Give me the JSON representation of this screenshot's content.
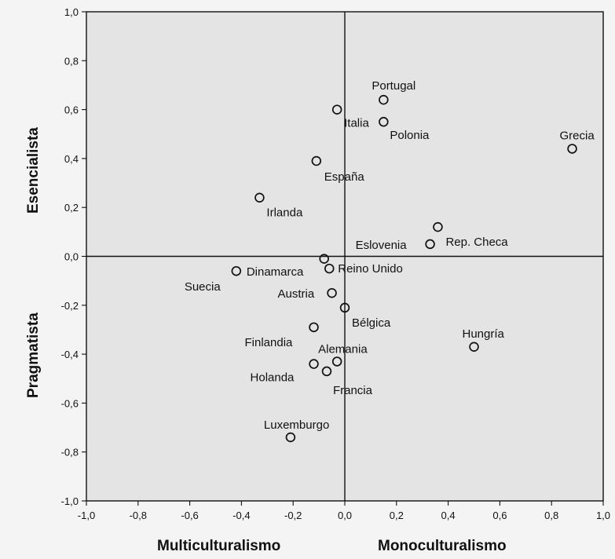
{
  "chart_data": {
    "type": "scatter",
    "xlim": [
      -1.0,
      1.0
    ],
    "ylim": [
      -1.0,
      1.0
    ],
    "grid": false,
    "reference_lines": {
      "x": 0.0,
      "y": 0.0
    },
    "x_ticks": [
      "-1,0",
      "-0,8",
      "-0,6",
      "-0,4",
      "-0,2",
      "0,0",
      "0,2",
      "0,4",
      "0,6",
      "0,8",
      "1,0"
    ],
    "y_ticks": [
      "1,0",
      "0,8",
      "0,6",
      "0,4",
      "0,2",
      "0,0",
      "-0,2",
      "-0,4",
      "-0,6",
      "-0,8",
      "-1,0"
    ],
    "x_labels": {
      "left": "Multiculturalismo",
      "right": "Monoculturalismo"
    },
    "y_labels": {
      "top": "Esencialista",
      "bottom": "Pragmatista"
    },
    "points": [
      {
        "label": "Portugal",
        "x": 0.15,
        "y": 0.64
      },
      {
        "label": "Italia",
        "x": -0.03,
        "y": 0.6
      },
      {
        "label": "Polonia",
        "x": 0.15,
        "y": 0.55
      },
      {
        "label": "Grecia",
        "x": 0.88,
        "y": 0.44
      },
      {
        "label": "España",
        "x": -0.11,
        "y": 0.39
      },
      {
        "label": "Irlanda",
        "x": -0.33,
        "y": 0.24
      },
      {
        "label": "Rep. Checa",
        "x": 0.36,
        "y": 0.12
      },
      {
        "label": "Eslovenia",
        "x": 0.33,
        "y": 0.05
      },
      {
        "label": "",
        "x": -0.08,
        "y": -0.01
      },
      {
        "label": "Dinamarca",
        "x": -0.42,
        "y": -0.06
      },
      {
        "label": "Reino Unido",
        "x": -0.06,
        "y": -0.05
      },
      {
        "label": "Suecia",
        "x": null,
        "y": null
      },
      {
        "label": "Austria",
        "x": -0.05,
        "y": -0.15
      },
      {
        "label": "Bélgica",
        "x": 0.0,
        "y": -0.21
      },
      {
        "label": "Finlandia",
        "x": -0.12,
        "y": -0.29
      },
      {
        "label": "Hungría",
        "x": 0.5,
        "y": -0.37
      },
      {
        "label": "Alemania",
        "x": -0.03,
        "y": -0.43
      },
      {
        "label": "Holanda",
        "x": -0.12,
        "y": -0.44
      },
      {
        "label": "Francia",
        "x": -0.07,
        "y": -0.47
      },
      {
        "label": "Luxemburgo",
        "x": -0.21,
        "y": -0.74
      }
    ]
  }
}
